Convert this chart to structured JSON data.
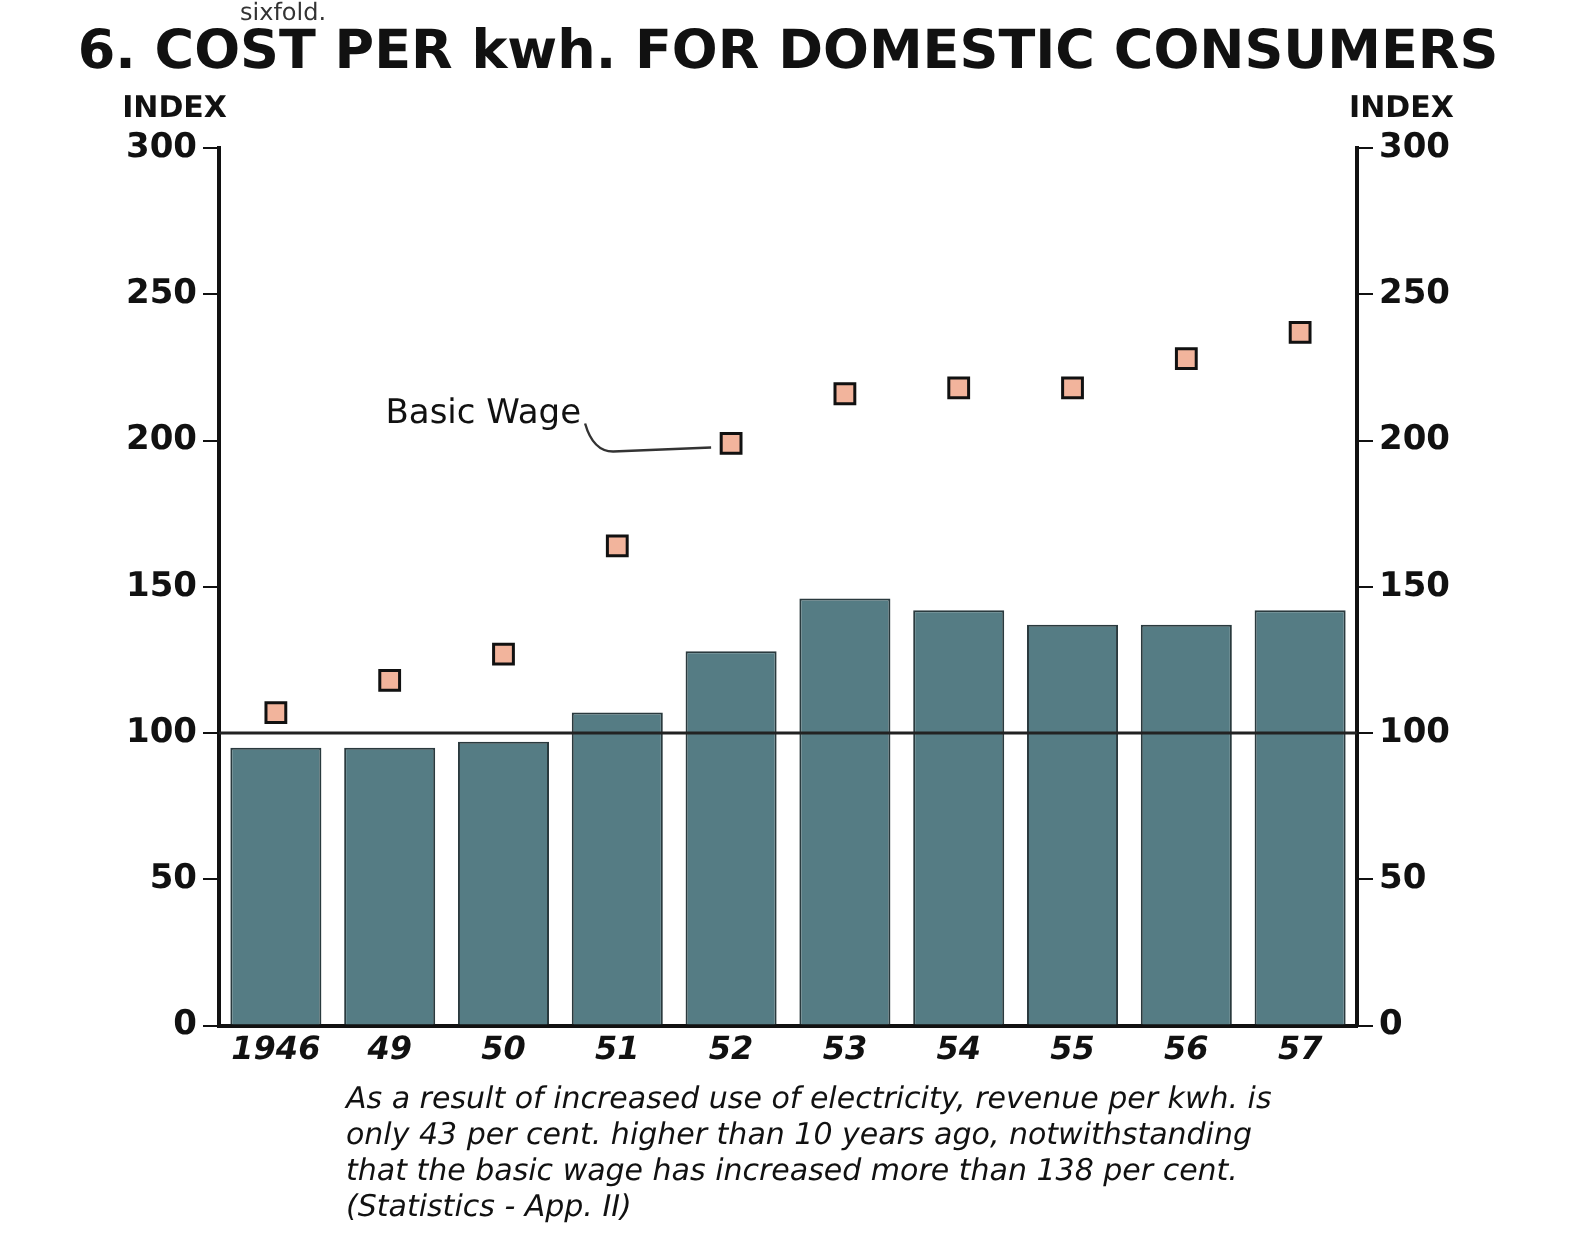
{
  "chart_data": {
    "type": "bar",
    "title": "6. COST PER kwh. FOR DOMESTIC CONSUMERS",
    "categories": [
      "1946",
      "49",
      "50",
      "51",
      "52",
      "53",
      "54",
      "55",
      "56",
      "57"
    ],
    "series": [
      {
        "color": "#557c84",
        "values": [
          95,
          95,
          97,
          107,
          128,
          146,
          142,
          137,
          137,
          142
        ]
      },
      {
        "type": "scatter",
        "name": "Basic Wage",
        "color": "#f2b49c",
        "values": [
          107,
          118,
          127,
          164,
          199,
          216,
          218,
          218,
          228,
          237
        ]
      }
    ],
    "marker": "square",
    "ylabel": "INDEX",
    "y2label": "INDEX",
    "ylim": [
      0,
      300
    ],
    "yticks": [
      0,
      50,
      100,
      150,
      200,
      250,
      300
    ],
    "y2lim": [
      0,
      300
    ],
    "y2ticks": [
      0,
      50,
      100,
      150,
      200,
      250,
      300
    ],
    "ref_lines": [
      {
        "axis": "y",
        "value": 100,
        "color": "#222222"
      }
    ],
    "annotations": [
      "sixfold.",
      "As a result of increased use of electricity, revenue per kwh. is only 43 per cent. higher than 10 years ago, notwithstanding that the basic wage has increased more than 138 per cent. (Statistics - App. II)"
    ]
  }
}
